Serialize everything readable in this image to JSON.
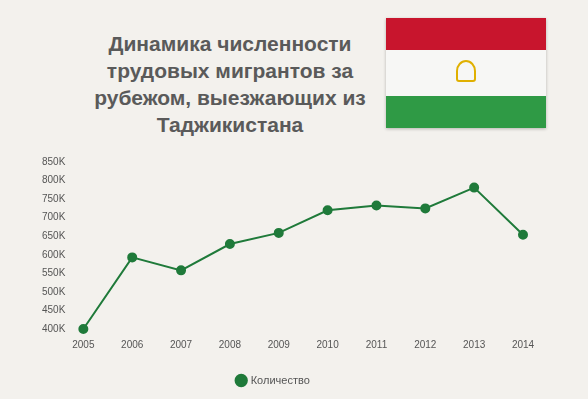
{
  "chart_data": {
    "type": "line",
    "title": "Динамика численности трудовых мигрантов за рубежом, выезжающих из Таджикистана",
    "categories": [
      "2005",
      "2006",
      "2007",
      "2008",
      "2009",
      "2010",
      "2011",
      "2012",
      "2013",
      "2014"
    ],
    "series": [
      {
        "name": "Количество",
        "color": "#1f7a3a",
        "marker": "circle",
        "values": [
          400000,
          593000,
          558000,
          629000,
          659000,
          720000,
          733000,
          725000,
          781000,
          654000
        ]
      }
    ],
    "ylim": [
      400000,
      850000
    ],
    "yticks": [
      {
        "value": 400000,
        "label": "400K"
      },
      {
        "value": 450000,
        "label": "450K"
      },
      {
        "value": 500000,
        "label": "500K"
      },
      {
        "value": 550000,
        "label": "550K"
      },
      {
        "value": 600000,
        "label": "600K"
      },
      {
        "value": 650000,
        "label": "650K"
      },
      {
        "value": 700000,
        "label": "700K"
      },
      {
        "value": 750000,
        "label": "750K"
      },
      {
        "value": 800000,
        "label": "800K"
      },
      {
        "value": 850000,
        "label": "850K"
      }
    ],
    "grid": false,
    "legend": "bottom"
  }
}
